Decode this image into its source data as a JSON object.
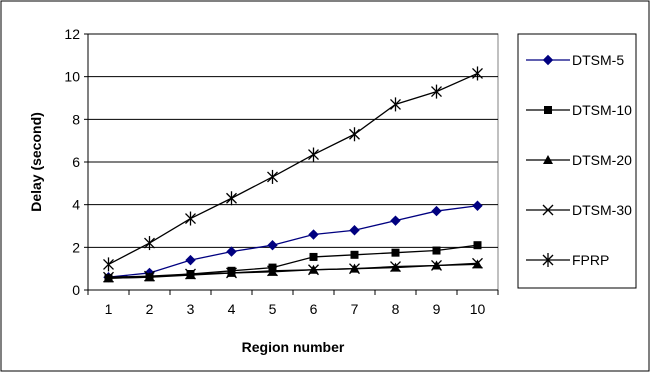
{
  "chart_data": {
    "type": "line",
    "xlabel": "Region number",
    "ylabel": "Delay (second)",
    "x": [
      1,
      2,
      3,
      4,
      5,
      6,
      7,
      8,
      9,
      10
    ],
    "ylim": [
      0,
      12
    ],
    "yticks": [
      0,
      2,
      4,
      6,
      8,
      10,
      12
    ],
    "grid": "horizontal",
    "legend_position": "right",
    "series": [
      {
        "name": "DTSM-5",
        "marker": "diamond",
        "color": "#000080",
        "values": [
          0.6,
          0.8,
          1.4,
          1.8,
          2.1,
          2.6,
          2.8,
          3.25,
          3.7,
          3.95
        ]
      },
      {
        "name": "DTSM-10",
        "marker": "square",
        "color": "#000000",
        "values": [
          0.55,
          0.6,
          0.75,
          0.9,
          1.05,
          1.55,
          1.65,
          1.75,
          1.85,
          2.1
        ]
      },
      {
        "name": "DTSM-20",
        "marker": "triangle",
        "color": "#000000",
        "values": [
          0.55,
          0.6,
          0.7,
          0.8,
          0.85,
          0.95,
          1.0,
          1.05,
          1.15,
          1.2
        ]
      },
      {
        "name": "DTSM-30",
        "marker": "x",
        "color": "#000000",
        "values": [
          0.6,
          0.65,
          0.75,
          0.8,
          0.9,
          0.95,
          1.0,
          1.1,
          1.15,
          1.25
        ]
      },
      {
        "name": "FPRP",
        "marker": "star",
        "color": "#000000",
        "values": [
          1.2,
          2.2,
          3.35,
          4.3,
          5.3,
          6.35,
          7.3,
          8.7,
          9.3,
          10.15
        ]
      }
    ]
  }
}
